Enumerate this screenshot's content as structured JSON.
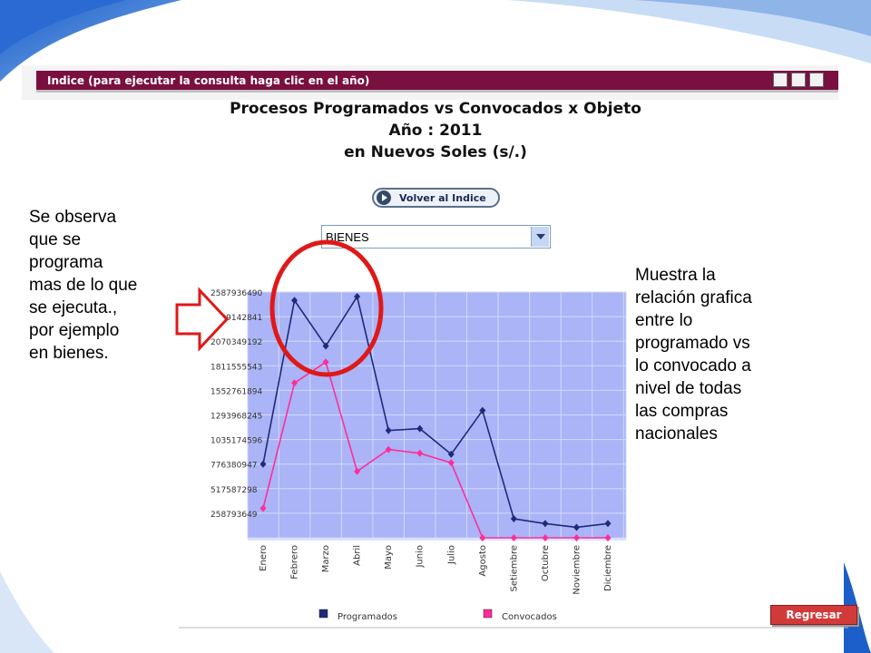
{
  "header": {
    "text": "Indice (para ejecutar la consulta haga clic en el año)"
  },
  "title": {
    "line1": "Procesos Programados vs Convocados x Objeto",
    "line2": "Año : 2011",
    "line3": "en Nuevos Soles (s/.)"
  },
  "back_button": {
    "label": "Volver al Indice"
  },
  "select": {
    "value": "BIENES"
  },
  "note_left": {
    "lines": [
      "Se observa",
      "que se",
      "programa",
      "mas de lo que",
      "se ejecuta.,",
      "por ejemplo",
      "en bienes."
    ]
  },
  "note_right": {
    "lines": [
      "Muestra la",
      "relación grafica",
      "entre lo",
      "programado vs",
      "lo convocado a",
      "nivel de todas",
      "las compras",
      "nacionales"
    ]
  },
  "regresar_button": {
    "label": "Regresar"
  },
  "colors": {
    "header": "#7a1040",
    "plot_bg": "#aab4f6",
    "programados": "#1f2a7a",
    "convocados": "#ff2d9a",
    "highlight": "#e01818"
  },
  "chart_data": {
    "type": "line",
    "title": "",
    "xlabel": "",
    "ylabel": "",
    "categories": [
      "Enero",
      "Febrero",
      "Marzo",
      "Abril",
      "Mayo",
      "Junio",
      "Julio",
      "Agosto",
      "Setiembre",
      "Octubre",
      "Noviembre",
      "Diciembre"
    ],
    "y_tick_labels": [
      "2587936490",
      "2329142841",
      "2070349192",
      "1811555543",
      "1552761894",
      "1293968245",
      "1035174596",
      "776380947",
      "517587298",
      "258793649"
    ],
    "ylim": [
      0,
      2587936490
    ],
    "grid": true,
    "legend_position": "bottom",
    "series": [
      {
        "name": "Programados",
        "values": [
          776380947,
          2500000000,
          2020000000,
          2540000000,
          1130000000,
          1150000000,
          880000000,
          1340000000,
          200000000,
          150000000,
          110000000,
          150000000
        ]
      },
      {
        "name": "Convocados",
        "values": [
          310000000,
          1630000000,
          1850000000,
          700000000,
          930000000,
          890000000,
          790000000,
          0,
          0,
          0,
          0,
          0
        ]
      }
    ]
  }
}
